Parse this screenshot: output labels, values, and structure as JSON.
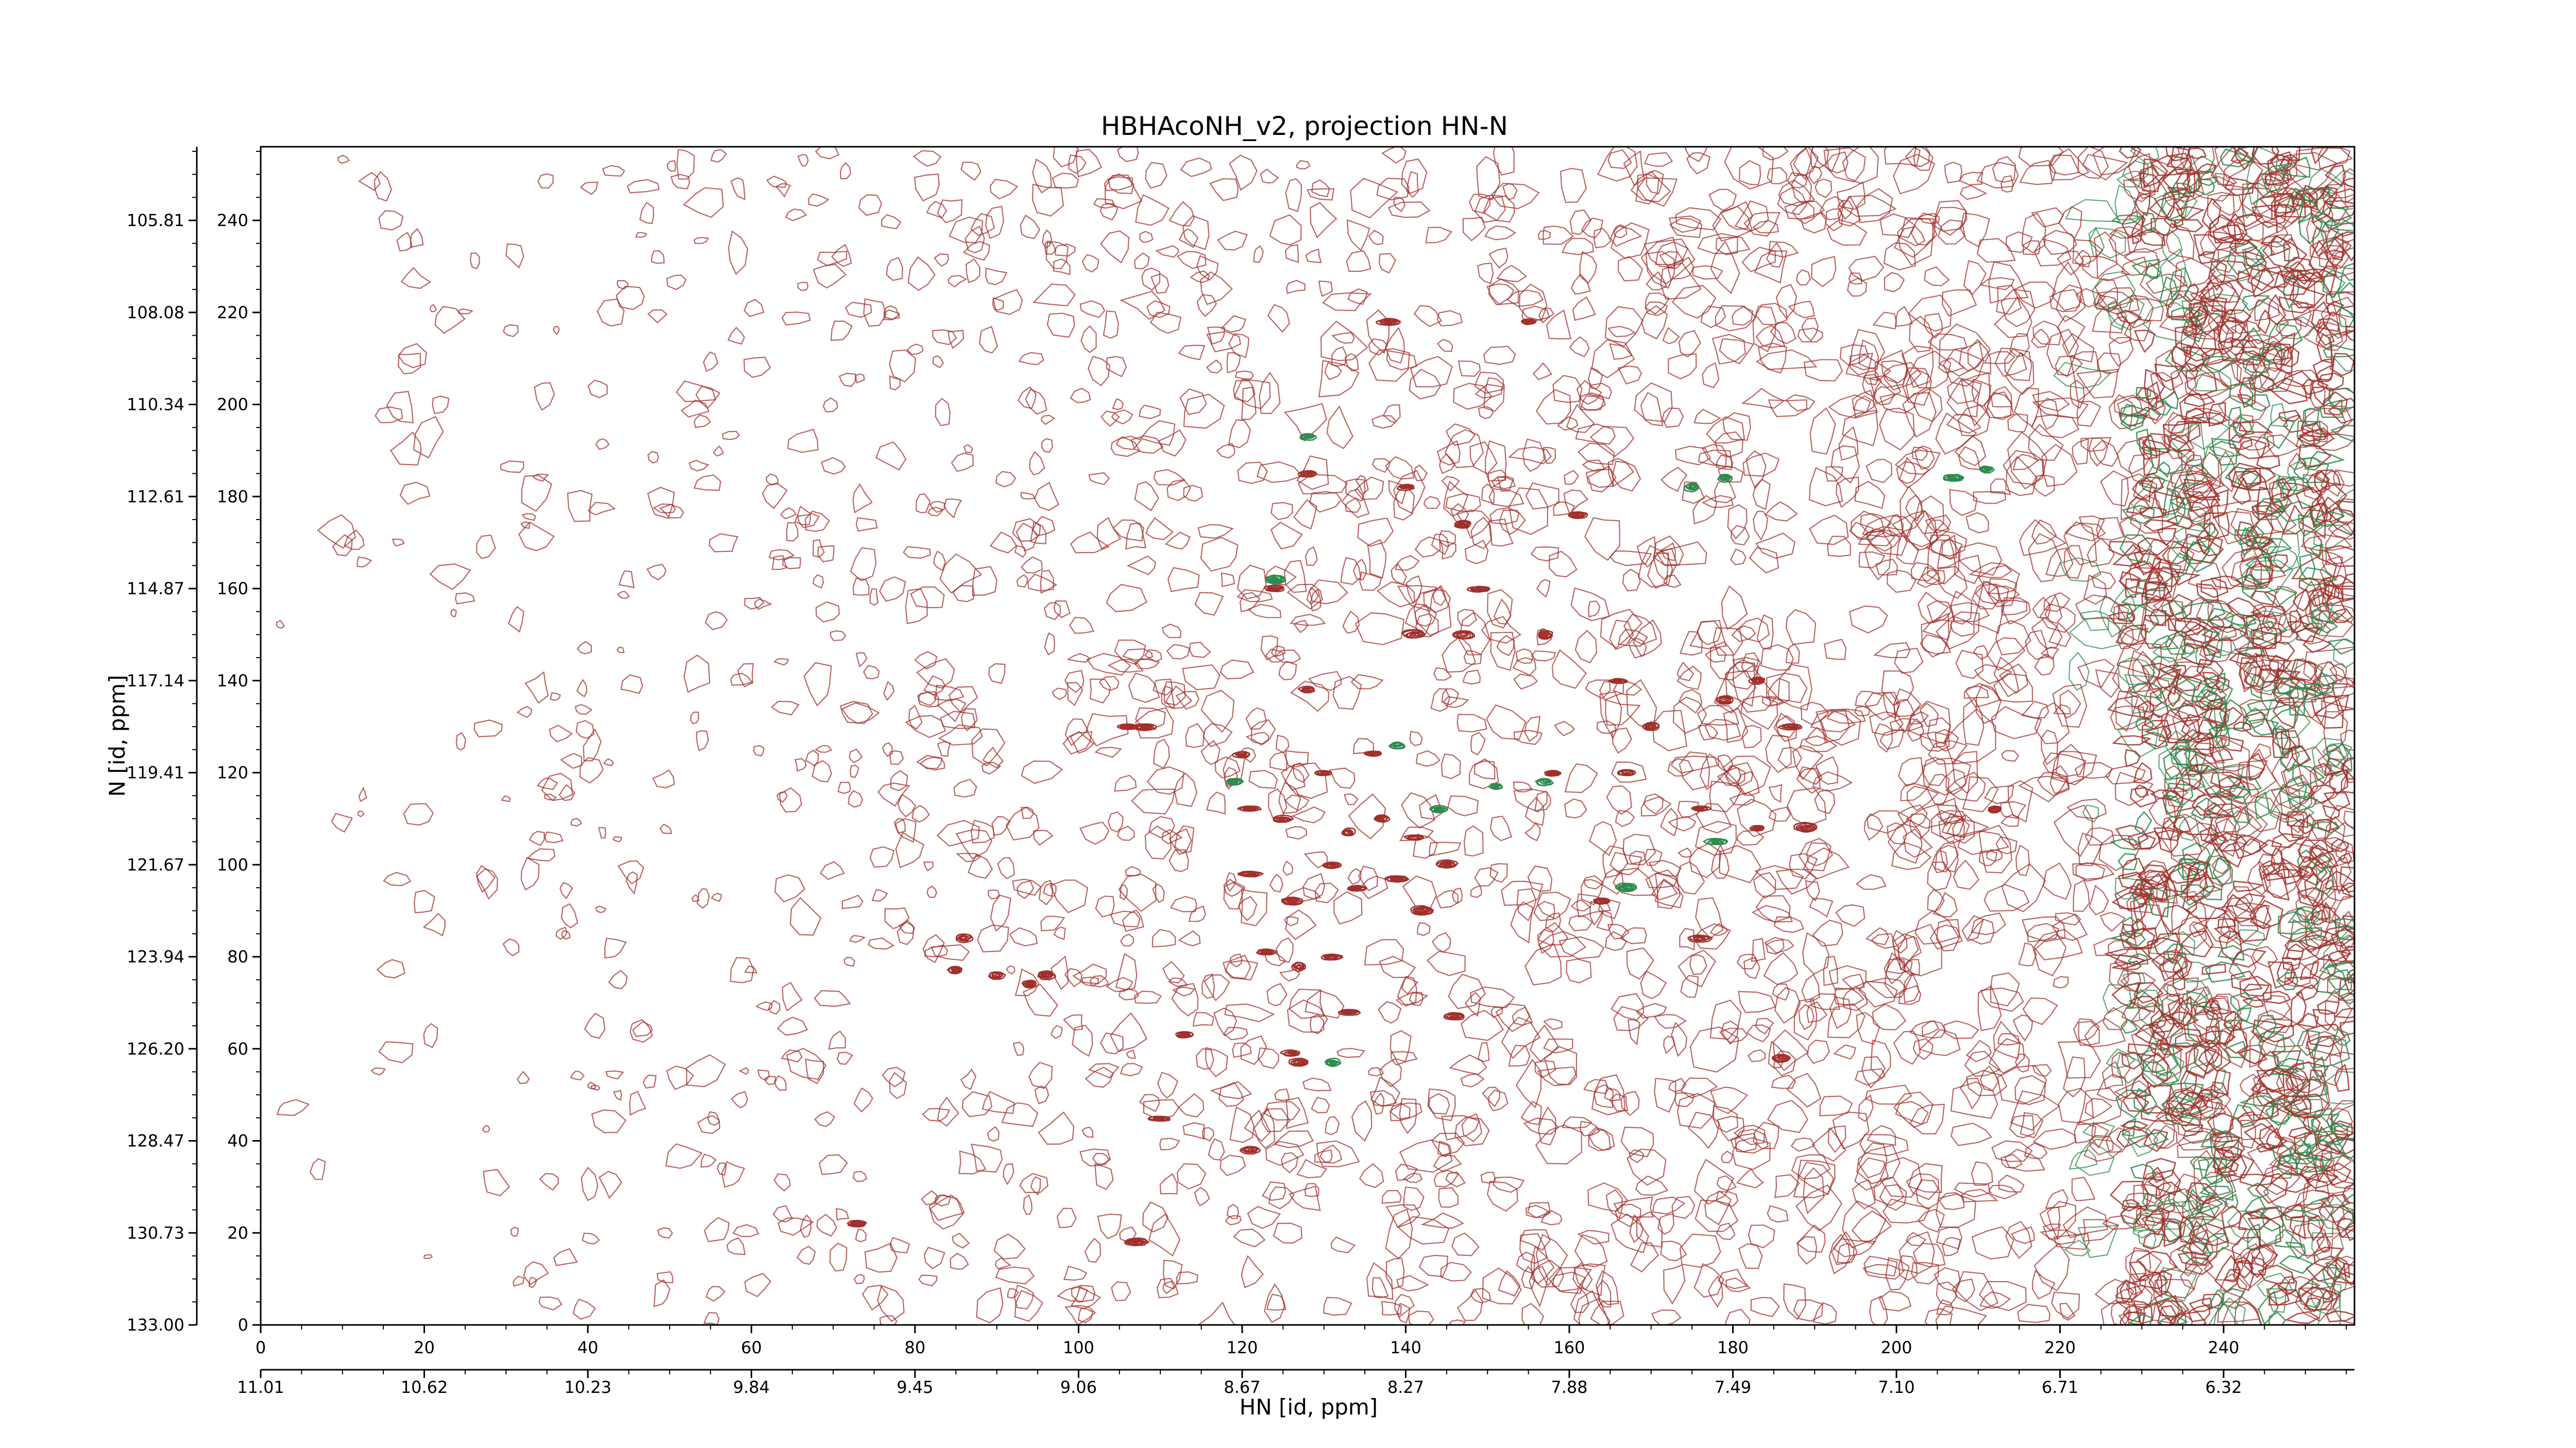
{
  "chart_data": {
    "type": "contour",
    "title": "HBHAcoNH_v2, projection HN-N",
    "xlabel": "HN [id, ppm]",
    "ylabel": "N [id, ppm]",
    "x_index_range": [
      0,
      256
    ],
    "y_index_range": [
      0,
      256
    ],
    "x_index_ticks": [
      0,
      20,
      40,
      60,
      80,
      100,
      120,
      140,
      160,
      180,
      200,
      220,
      240
    ],
    "x_ppm_ticks": [
      "11.01",
      "10.62",
      "10.23",
      "9.84",
      "9.45",
      "9.06",
      "8.67",
      "8.27",
      "7.88",
      "7.49",
      "7.10",
      "6.71",
      "6.32"
    ],
    "y_index_ticks": [
      0,
      20,
      40,
      60,
      80,
      100,
      120,
      140,
      160,
      180,
      200,
      220,
      240
    ],
    "y_ppm_ticks": [
      "133.00",
      "130.73",
      "128.47",
      "126.20",
      "123.94",
      "121.67",
      "119.41",
      "117.14",
      "114.87",
      "112.61",
      "110.34",
      "108.08",
      "105.81"
    ],
    "colors": {
      "positive": "#a0302c",
      "negative": "#2f8a4e"
    },
    "positive_peaks": [
      [
        138,
        218
      ],
      [
        155,
        218
      ],
      [
        128,
        185
      ],
      [
        140,
        182
      ],
      [
        161,
        176
      ],
      [
        124,
        160
      ],
      [
        141,
        150
      ],
      [
        147,
        150
      ],
      [
        149,
        160
      ],
      [
        108,
        130
      ],
      [
        120,
        124
      ],
      [
        136,
        124
      ],
      [
        130,
        120
      ],
      [
        121,
        112
      ],
      [
        125,
        110
      ],
      [
        137,
        110
      ],
      [
        133,
        107
      ],
      [
        141,
        106
      ],
      [
        145,
        100
      ],
      [
        131,
        100
      ],
      [
        121,
        98
      ],
      [
        139,
        97
      ],
      [
        134,
        95
      ],
      [
        126,
        92
      ],
      [
        142,
        90
      ],
      [
        127,
        78
      ],
      [
        131,
        80
      ],
      [
        123,
        81
      ],
      [
        133,
        68
      ],
      [
        146,
        67
      ],
      [
        113,
        63
      ],
      [
        126,
        59
      ],
      [
        127,
        57
      ],
      [
        121,
        38
      ],
      [
        110,
        45
      ],
      [
        107,
        18
      ],
      [
        73,
        22
      ],
      [
        86,
        84
      ],
      [
        85,
        77
      ],
      [
        90,
        76
      ],
      [
        96,
        76
      ],
      [
        94,
        74
      ],
      [
        170,
        130
      ],
      [
        179,
        136
      ],
      [
        183,
        140
      ],
      [
        187,
        130
      ],
      [
        176,
        112
      ],
      [
        183,
        108
      ],
      [
        189,
        108
      ],
      [
        167,
        120
      ],
      [
        212,
        112
      ],
      [
        176,
        84
      ],
      [
        186,
        58
      ],
      [
        164,
        92
      ],
      [
        157,
        150
      ],
      [
        158,
        120
      ],
      [
        128,
        138
      ],
      [
        166,
        140
      ],
      [
        147,
        174
      ],
      [
        106,
        130
      ]
    ],
    "negative_peaks": [
      [
        128,
        193
      ],
      [
        175,
        182
      ],
      [
        179,
        184
      ],
      [
        211,
        186
      ],
      [
        207,
        184
      ],
      [
        139,
        126
      ],
      [
        144,
        112
      ],
      [
        151,
        117
      ],
      [
        157,
        118
      ],
      [
        167,
        95
      ],
      [
        178,
        105
      ],
      [
        119,
        118
      ],
      [
        131,
        57
      ],
      [
        124,
        162
      ]
    ]
  }
}
